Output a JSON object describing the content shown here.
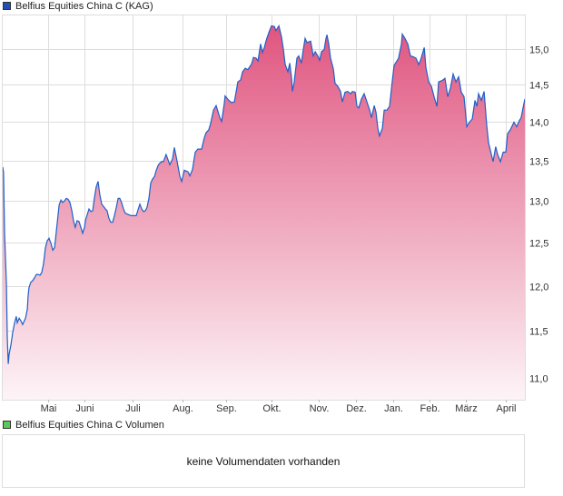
{
  "legend_price": {
    "label": "Belfius Equities China C (KAG)",
    "color": "#1f4fb8"
  },
  "legend_volume": {
    "label": "Belfius Equities China C Volumen",
    "color": "#5cc85c"
  },
  "volume_message": "keine Volumendaten vorhanden",
  "colors": {
    "line": "#1f5fc8",
    "fill_top": "#e05580",
    "fill_bottom": "#fdf4f7",
    "grid": "#dddddd"
  },
  "chart_data": {
    "type": "area",
    "title": "Belfius Equities China C (KAG)",
    "xlabel": "",
    "ylabel": "",
    "yscale": "log",
    "ylim": [
      10.78,
      15.48
    ],
    "xlim": [
      0,
      254.7
    ],
    "grid": true,
    "y_ticks": [
      {
        "v": 15.0,
        "label": "15,0"
      },
      {
        "v": 14.5,
        "label": "14,5"
      },
      {
        "v": 14.0,
        "label": "14,0"
      },
      {
        "v": 13.5,
        "label": "13,5"
      },
      {
        "v": 13.0,
        "label": "13,0"
      },
      {
        "v": 12.5,
        "label": "12,5"
      },
      {
        "v": 12.0,
        "label": "12,0"
      },
      {
        "v": 11.5,
        "label": "11,5"
      },
      {
        "v": 11.0,
        "label": "11,0"
      }
    ],
    "x_ticks": [
      {
        "t": 22.1,
        "label": "Mai"
      },
      {
        "t": 39.9,
        "label": "Juni"
      },
      {
        "t": 63.3,
        "label": "Juli"
      },
      {
        "t": 87.7,
        "label": "Aug."
      },
      {
        "t": 109.0,
        "label": "Sep."
      },
      {
        "t": 131.1,
        "label": "Okt."
      },
      {
        "t": 154.2,
        "label": "Nov."
      },
      {
        "t": 172.3,
        "label": "Dez."
      },
      {
        "t": 190.5,
        "label": "Jan."
      },
      {
        "t": 208.2,
        "label": "Feb."
      },
      {
        "t": 225.9,
        "label": "März"
      },
      {
        "t": 245.4,
        "label": "April"
      }
    ],
    "series": [
      {
        "name": "Belfius Equities China C (KAG)",
        "points": [
          [
            0.0,
            13.42
          ],
          [
            0.4,
            13.35
          ],
          [
            0.9,
            12.63
          ],
          [
            1.8,
            12.01
          ],
          [
            2.2,
            11.44
          ],
          [
            2.7,
            11.15
          ],
          [
            3.1,
            11.25
          ],
          [
            4.0,
            11.35
          ],
          [
            4.9,
            11.49
          ],
          [
            5.8,
            11.59
          ],
          [
            6.6,
            11.66
          ],
          [
            7.1,
            11.59
          ],
          [
            8.0,
            11.64
          ],
          [
            8.9,
            11.61
          ],
          [
            9.7,
            11.57
          ],
          [
            11.1,
            11.64
          ],
          [
            12.0,
            11.74
          ],
          [
            12.4,
            11.89
          ],
          [
            12.8,
            11.98
          ],
          [
            13.7,
            12.04
          ],
          [
            14.6,
            12.06
          ],
          [
            15.5,
            12.09
          ],
          [
            16.4,
            12.13
          ],
          [
            17.3,
            12.13
          ],
          [
            18.2,
            12.12
          ],
          [
            19.0,
            12.15
          ],
          [
            19.9,
            12.25
          ],
          [
            20.8,
            12.44
          ],
          [
            21.7,
            12.52
          ],
          [
            22.6,
            12.55
          ],
          [
            23.5,
            12.49
          ],
          [
            24.4,
            12.41
          ],
          [
            25.3,
            12.44
          ],
          [
            26.1,
            12.62
          ],
          [
            26.6,
            12.74
          ],
          [
            27.5,
            12.95
          ],
          [
            28.4,
            13.01
          ],
          [
            29.2,
            12.98
          ],
          [
            30.1,
            13.0
          ],
          [
            31.0,
            13.03
          ],
          [
            31.9,
            13.02
          ],
          [
            32.8,
            12.98
          ],
          [
            33.7,
            12.88
          ],
          [
            34.6,
            12.75
          ],
          [
            35.4,
            12.68
          ],
          [
            36.3,
            12.76
          ],
          [
            37.2,
            12.75
          ],
          [
            38.1,
            12.68
          ],
          [
            39.0,
            12.61
          ],
          [
            39.9,
            12.68
          ],
          [
            40.3,
            12.76
          ],
          [
            41.2,
            12.83
          ],
          [
            42.1,
            12.9
          ],
          [
            43.0,
            12.87
          ],
          [
            43.9,
            12.88
          ],
          [
            44.7,
            13.03
          ],
          [
            45.6,
            13.17
          ],
          [
            46.5,
            13.24
          ],
          [
            47.4,
            13.07
          ],
          [
            48.3,
            12.96
          ],
          [
            49.2,
            12.93
          ],
          [
            50.1,
            12.9
          ],
          [
            50.9,
            12.88
          ],
          [
            51.8,
            12.79
          ],
          [
            52.7,
            12.74
          ],
          [
            53.6,
            12.74
          ],
          [
            54.5,
            12.82
          ],
          [
            55.4,
            12.92
          ],
          [
            56.3,
            13.03
          ],
          [
            57.1,
            13.03
          ],
          [
            58.0,
            12.98
          ],
          [
            58.9,
            12.9
          ],
          [
            59.8,
            12.85
          ],
          [
            60.7,
            12.84
          ],
          [
            62.5,
            12.82
          ],
          [
            65.1,
            12.82
          ],
          [
            66.0,
            12.89
          ],
          [
            66.9,
            12.96
          ],
          [
            67.8,
            12.9
          ],
          [
            68.7,
            12.87
          ],
          [
            69.6,
            12.88
          ],
          [
            70.4,
            12.92
          ],
          [
            71.3,
            13.03
          ],
          [
            72.2,
            13.22
          ],
          [
            73.1,
            13.27
          ],
          [
            74.0,
            13.3
          ],
          [
            74.9,
            13.38
          ],
          [
            75.8,
            13.44
          ],
          [
            76.6,
            13.47
          ],
          [
            77.5,
            13.49
          ],
          [
            78.4,
            13.49
          ],
          [
            79.7,
            13.58
          ],
          [
            81.5,
            13.45
          ],
          [
            82.8,
            13.52
          ],
          [
            83.7,
            13.67
          ],
          [
            85.1,
            13.49
          ],
          [
            86.4,
            13.3
          ],
          [
            87.3,
            13.24
          ],
          [
            88.6,
            13.38
          ],
          [
            90.4,
            13.36
          ],
          [
            91.3,
            13.31
          ],
          [
            92.6,
            13.39
          ],
          [
            93.9,
            13.61
          ],
          [
            95.2,
            13.65
          ],
          [
            97.0,
            13.65
          ],
          [
            98.3,
            13.79
          ],
          [
            99.2,
            13.86
          ],
          [
            100.5,
            13.9
          ],
          [
            101.4,
            13.98
          ],
          [
            102.8,
            14.16
          ],
          [
            104.1,
            14.22
          ],
          [
            105.9,
            14.06
          ],
          [
            106.8,
            14.01
          ],
          [
            108.1,
            14.25
          ],
          [
            108.5,
            14.35
          ],
          [
            110.3,
            14.29
          ],
          [
            111.6,
            14.26
          ],
          [
            113.0,
            14.27
          ],
          [
            113.9,
            14.41
          ],
          [
            114.7,
            14.54
          ],
          [
            116.1,
            14.57
          ],
          [
            117.0,
            14.68
          ],
          [
            118.3,
            14.73
          ],
          [
            119.6,
            14.71
          ],
          [
            121.4,
            14.79
          ],
          [
            122.3,
            14.88
          ],
          [
            123.6,
            14.87
          ],
          [
            124.5,
            14.83
          ],
          [
            125.8,
            15.07
          ],
          [
            126.7,
            14.95
          ],
          [
            127.6,
            15.02
          ],
          [
            128.5,
            15.12
          ],
          [
            129.8,
            15.23
          ],
          [
            131.1,
            15.33
          ],
          [
            132.5,
            15.32
          ],
          [
            133.3,
            15.26
          ],
          [
            134.7,
            15.33
          ],
          [
            136.0,
            15.17
          ],
          [
            136.9,
            14.99
          ],
          [
            137.8,
            14.78
          ],
          [
            139.1,
            14.68
          ],
          [
            140.0,
            14.8
          ],
          [
            140.9,
            14.59
          ],
          [
            141.3,
            14.41
          ],
          [
            142.2,
            14.54
          ],
          [
            143.5,
            14.87
          ],
          [
            144.4,
            14.9
          ],
          [
            145.7,
            14.8
          ],
          [
            146.6,
            14.99
          ],
          [
            147.5,
            15.15
          ],
          [
            148.4,
            15.09
          ],
          [
            150.2,
            15.11
          ],
          [
            151.5,
            14.9
          ],
          [
            152.4,
            14.96
          ],
          [
            153.7,
            14.9
          ],
          [
            154.6,
            14.84
          ],
          [
            155.5,
            14.96
          ],
          [
            156.8,
            14.99
          ],
          [
            157.7,
            15.15
          ],
          [
            158.2,
            15.2
          ],
          [
            159.0,
            15.07
          ],
          [
            159.9,
            14.87
          ],
          [
            161.3,
            14.72
          ],
          [
            162.1,
            14.52
          ],
          [
            163.5,
            14.48
          ],
          [
            164.8,
            14.41
          ],
          [
            165.7,
            14.27
          ],
          [
            167.0,
            14.4
          ],
          [
            168.3,
            14.41
          ],
          [
            169.7,
            14.38
          ],
          [
            170.6,
            14.41
          ],
          [
            171.9,
            14.4
          ],
          [
            172.8,
            14.21
          ],
          [
            173.7,
            14.19
          ],
          [
            175.0,
            14.31
          ],
          [
            176.3,
            14.38
          ],
          [
            177.2,
            14.31
          ],
          [
            179.0,
            14.16
          ],
          [
            179.9,
            14.06
          ],
          [
            181.2,
            14.22
          ],
          [
            182.1,
            14.13
          ],
          [
            183.0,
            13.92
          ],
          [
            183.8,
            13.82
          ],
          [
            185.2,
            13.92
          ],
          [
            186.1,
            14.16
          ],
          [
            187.4,
            14.16
          ],
          [
            188.7,
            14.21
          ],
          [
            190.0,
            14.54
          ],
          [
            190.9,
            14.77
          ],
          [
            192.3,
            14.83
          ],
          [
            193.1,
            14.87
          ],
          [
            194.5,
            15.07
          ],
          [
            194.9,
            15.21
          ],
          [
            196.2,
            15.15
          ],
          [
            197.6,
            15.07
          ],
          [
            198.9,
            14.9
          ],
          [
            200.2,
            14.89
          ],
          [
            201.6,
            14.87
          ],
          [
            202.9,
            14.78
          ],
          [
            203.8,
            14.84
          ],
          [
            205.6,
            15.02
          ],
          [
            206.4,
            14.74
          ],
          [
            207.8,
            14.54
          ],
          [
            209.1,
            14.48
          ],
          [
            210.4,
            14.34
          ],
          [
            211.8,
            14.21
          ],
          [
            212.6,
            14.54
          ],
          [
            214.4,
            14.56
          ],
          [
            215.7,
            14.59
          ],
          [
            217.1,
            14.34
          ],
          [
            218.4,
            14.46
          ],
          [
            219.7,
            14.65
          ],
          [
            221.1,
            14.54
          ],
          [
            222.4,
            14.61
          ],
          [
            223.7,
            14.4
          ],
          [
            225.0,
            14.34
          ],
          [
            226.4,
            13.94
          ],
          [
            227.7,
            14.0
          ],
          [
            229.0,
            14.04
          ],
          [
            230.4,
            14.29
          ],
          [
            231.3,
            14.21
          ],
          [
            232.1,
            14.38
          ],
          [
            233.5,
            14.29
          ],
          [
            234.8,
            14.41
          ],
          [
            236.1,
            13.96
          ],
          [
            237.0,
            13.73
          ],
          [
            239.2,
            13.49
          ],
          [
            240.5,
            13.68
          ],
          [
            241.4,
            13.58
          ],
          [
            242.8,
            13.49
          ],
          [
            244.1,
            13.61
          ],
          [
            245.4,
            13.61
          ],
          [
            246.3,
            13.85
          ],
          [
            247.6,
            13.9
          ],
          [
            249.4,
            14.0
          ],
          [
            250.7,
            13.94
          ],
          [
            252.0,
            14.02
          ],
          [
            252.9,
            14.06
          ],
          [
            253.8,
            14.19
          ],
          [
            254.7,
            14.31
          ]
        ]
      }
    ]
  }
}
